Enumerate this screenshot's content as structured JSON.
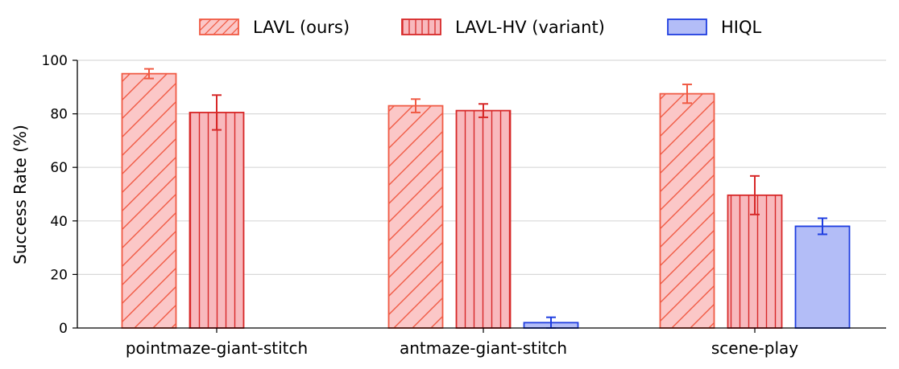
{
  "chart_data": {
    "type": "bar",
    "title": "",
    "xlabel": "",
    "ylabel": "Success Rate (%)",
    "ylim": [
      0,
      100
    ],
    "yticks": [
      0,
      20,
      40,
      60,
      80,
      100
    ],
    "grid": "horizontal",
    "legend_position": "top-center",
    "categories": [
      "pointmaze-giant-stitch",
      "antmaze-giant-stitch",
      "scene-play"
    ],
    "series": [
      {
        "name": "LAVL (ours)",
        "values": [
          95,
          83,
          87.5
        ],
        "errors": [
          1.8,
          2.5,
          3.5
        ],
        "fill": "#fbc7c7",
        "edge": "#f05a44",
        "hatch": "diagonal"
      },
      {
        "name": "LAVL-HV (variant)",
        "values": [
          80.5,
          81.2,
          49.6
        ],
        "errors": [
          6.5,
          2.5,
          7.2
        ],
        "fill": "#f8b9bd",
        "edge": "#d72828",
        "hatch": "vertical"
      },
      {
        "name": "HIQL",
        "values": [
          0,
          2,
          38
        ],
        "errors": [
          0,
          2,
          3
        ],
        "fill": "#b3bdf7",
        "edge": "#1f3ee0",
        "hatch": "none"
      }
    ]
  }
}
